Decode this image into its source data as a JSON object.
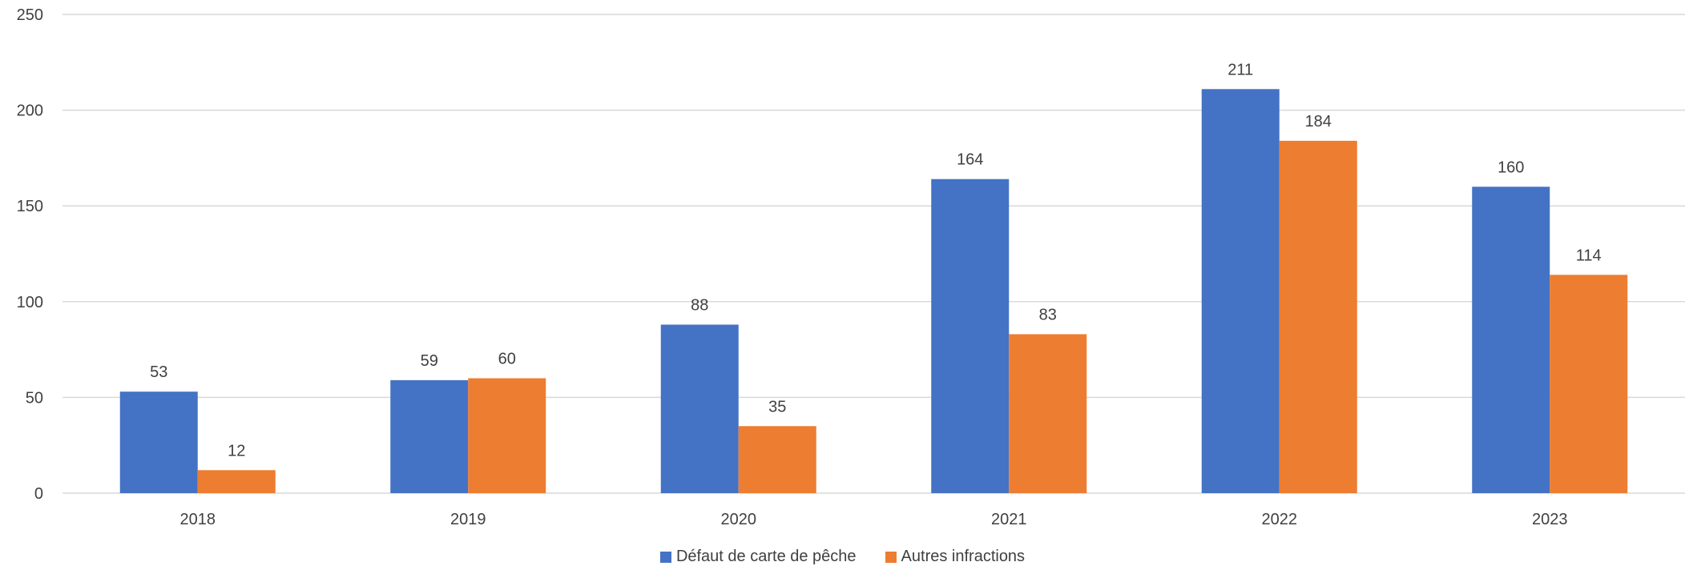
{
  "chart_data": {
    "type": "bar",
    "title": "",
    "xlabel": "",
    "ylabel": "",
    "categories": [
      "2018",
      "2019",
      "2020",
      "2021",
      "2022",
      "2023"
    ],
    "series": [
      {
        "name": "Défaut de carte de pêche",
        "color": "#4472C4",
        "values": [
          53,
          59,
          88,
          164,
          211,
          160
        ]
      },
      {
        "name": "Autres infractions",
        "color": "#ED7D31",
        "values": [
          12,
          60,
          35,
          83,
          184,
          114
        ]
      }
    ],
    "ylim": [
      0,
      250
    ],
    "yticks": [
      "0",
      "50",
      "100",
      "150",
      "200",
      "250"
    ],
    "grid": true,
    "legend_position": "bottom",
    "data_labels": true
  }
}
